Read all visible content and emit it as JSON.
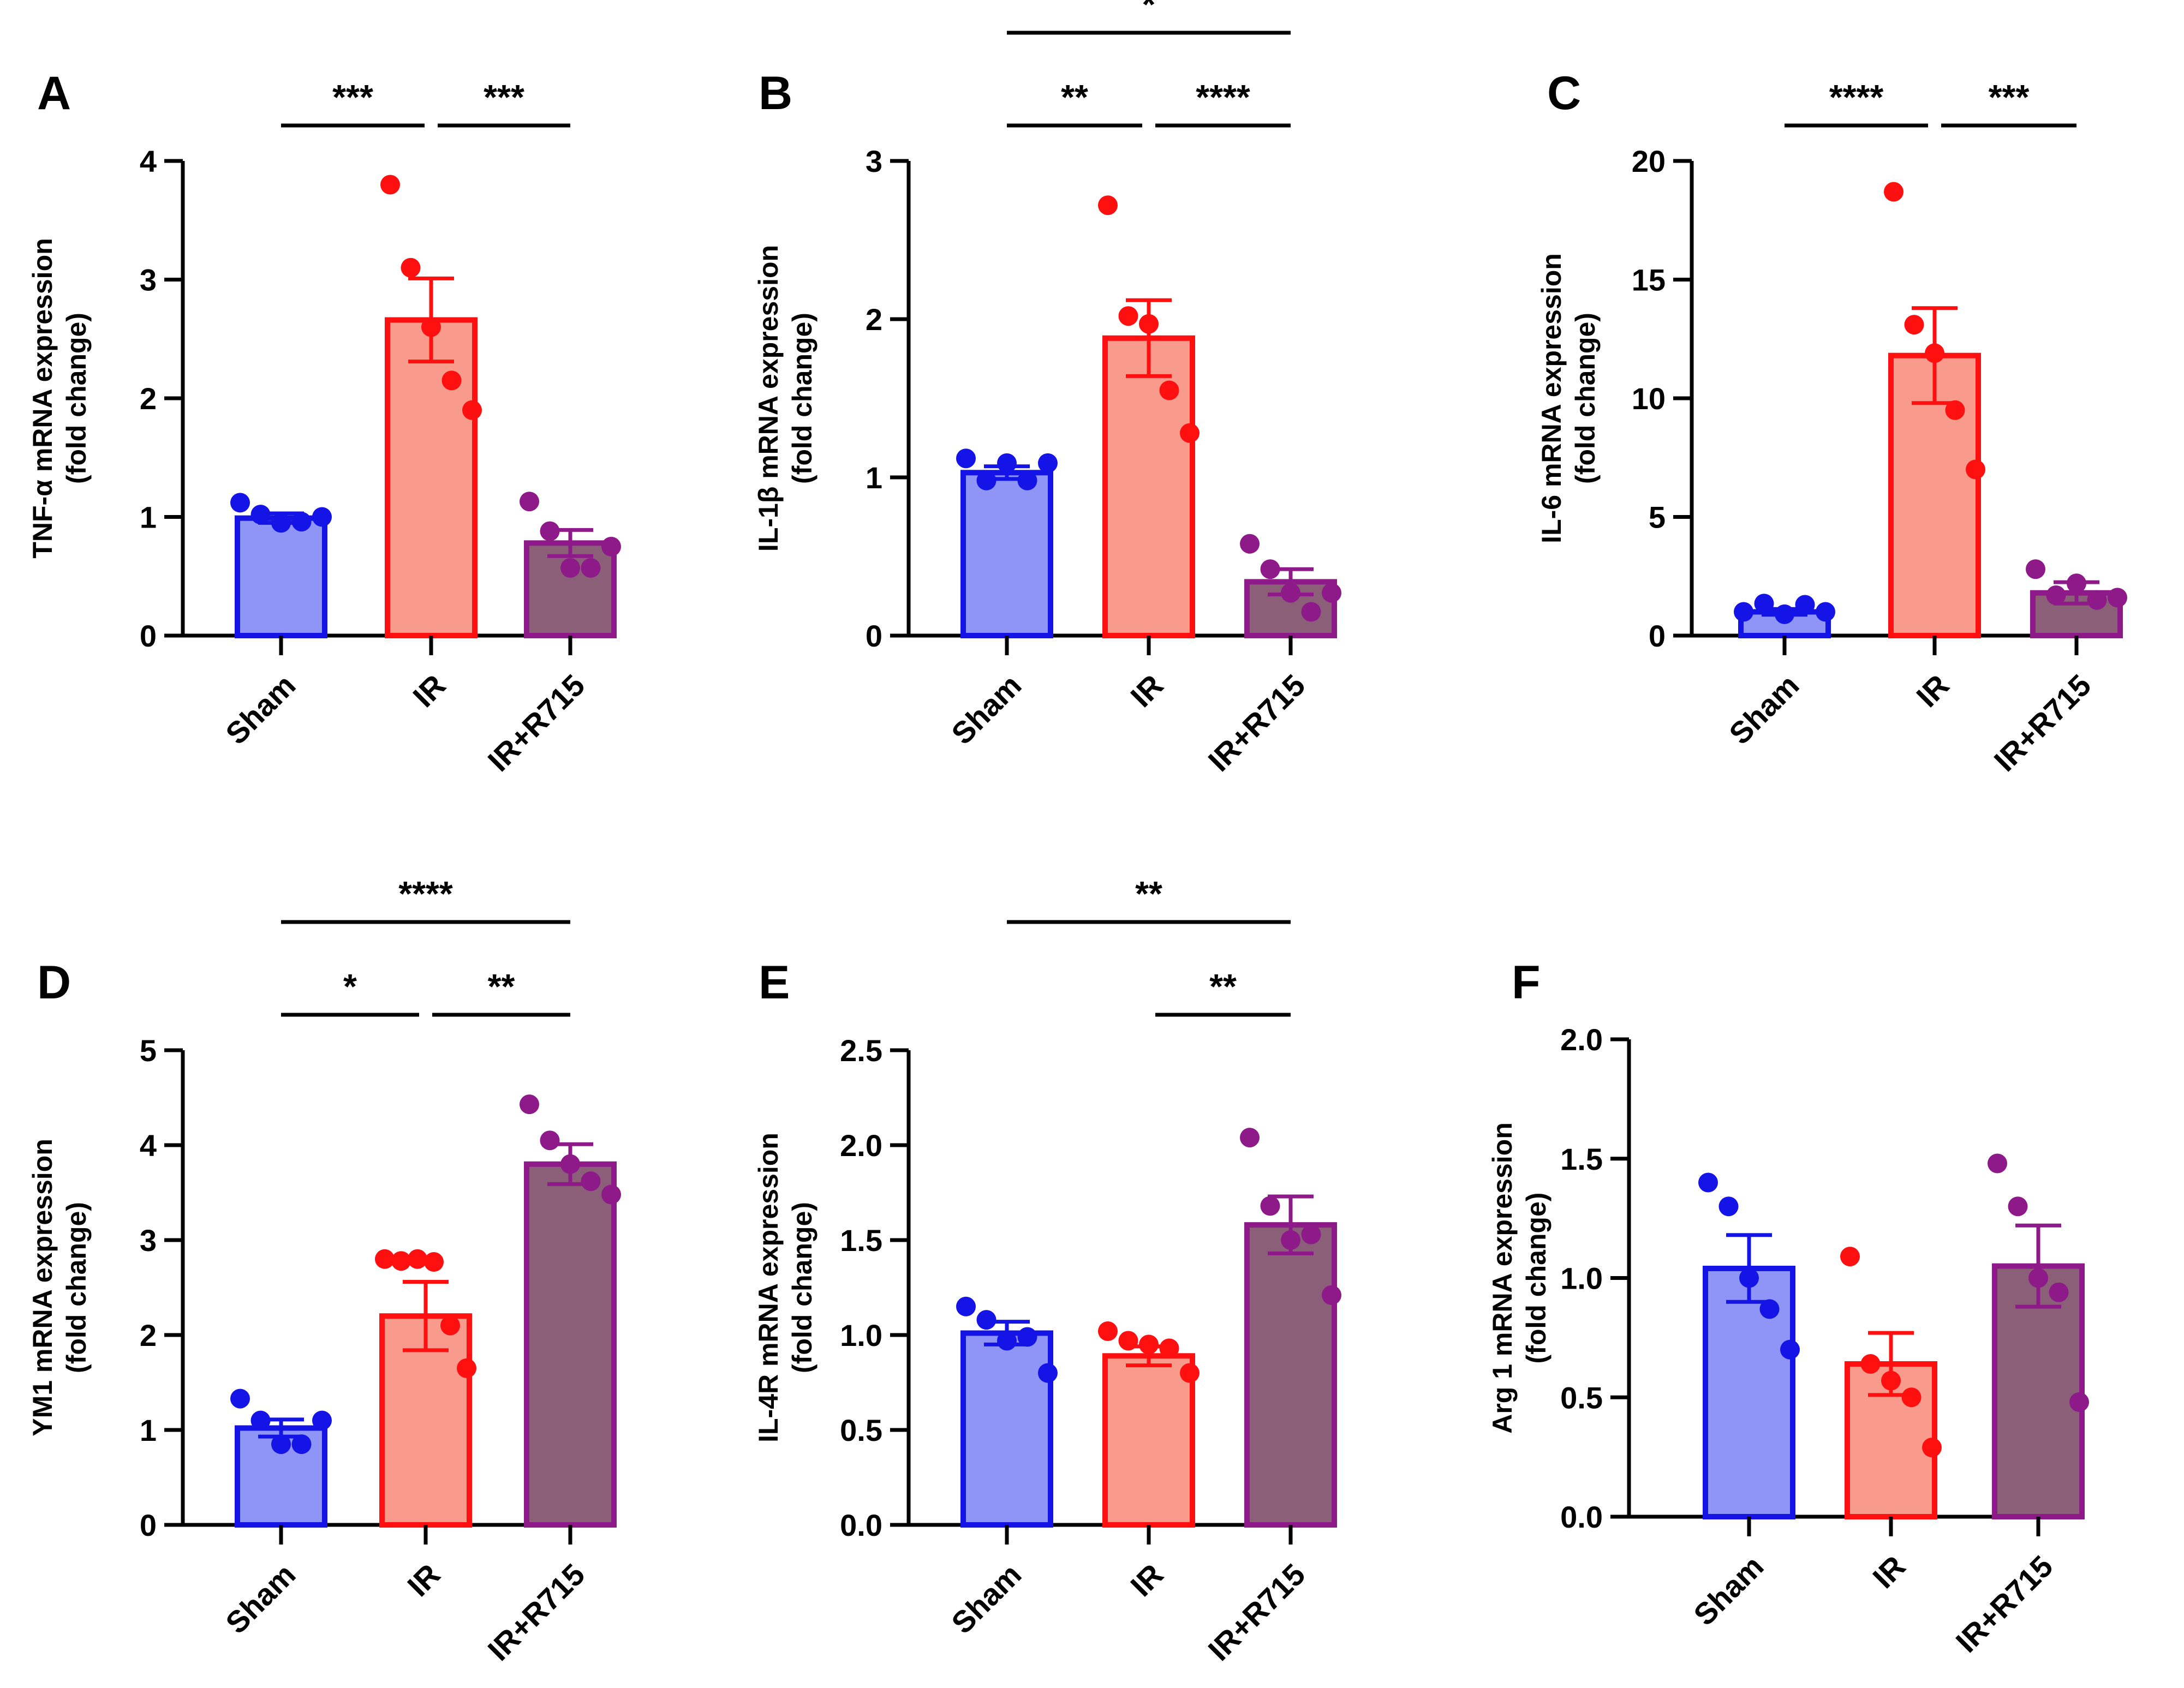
{
  "figure": {
    "categories": [
      "Sham",
      "IR",
      "IR+R715"
    ],
    "colors": {
      "Sham": {
        "fill": "#8f95f7",
        "stroke": "#1414e6",
        "dot": "#1414e6"
      },
      "IR": {
        "fill": "#f89a8c",
        "stroke": "#ff1010",
        "dot": "#ff1010"
      },
      "IR+R715": {
        "fill": "#8b5f78",
        "stroke": "#8e1a8a",
        "dot": "#8e1a8a"
      }
    }
  },
  "chart_data": [
    {
      "panel": "A",
      "type": "bar",
      "ylabel_line1": "TNF-α mRNA expression",
      "ylabel_line2": "(fold change)",
      "categories": [
        "Sham",
        "IR",
        "IR+R715"
      ],
      "ylim": [
        0,
        4
      ],
      "ticks": [
        0,
        1,
        2,
        3,
        4
      ],
      "tick_labels": [
        "0",
        "1",
        "2",
        "3",
        "4"
      ],
      "values": [
        0.99,
        2.66,
        0.78
      ],
      "sem": [
        0.04,
        0.35,
        0.11
      ],
      "points": [
        [
          1.12,
          1.02,
          0.95,
          0.96,
          1.0
        ],
        [
          3.8,
          3.1,
          2.6,
          2.15,
          1.9
        ],
        [
          1.13,
          0.88,
          0.57,
          0.57,
          0.75
        ]
      ],
      "significance": [
        {
          "from": 0,
          "to": 1,
          "label": "***"
        },
        {
          "from": 1,
          "to": 2,
          "label": "***"
        }
      ]
    },
    {
      "panel": "B",
      "type": "bar",
      "ylabel_line1": "IL-1β mRNA expression",
      "ylabel_line2": "(fold change)",
      "categories": [
        "Sham",
        "IR",
        "IR+R715"
      ],
      "ylim": [
        0,
        3
      ],
      "ticks": [
        0,
        1,
        2,
        3
      ],
      "tick_labels": [
        "0",
        "1",
        "2",
        "3"
      ],
      "values": [
        1.03,
        1.88,
        0.34
      ],
      "sem": [
        0.04,
        0.24,
        0.08
      ],
      "points": [
        [
          1.12,
          0.98,
          1.09,
          0.98,
          1.09
        ],
        [
          2.72,
          2.02,
          1.97,
          1.55,
          1.28
        ],
        [
          0.58,
          0.42,
          0.27,
          0.15,
          0.27
        ]
      ],
      "significance": [
        {
          "from": 0,
          "to": 1,
          "label": "**"
        },
        {
          "from": 1,
          "to": 2,
          "label": "****"
        },
        {
          "from": 0,
          "to": 2,
          "label": "*"
        }
      ]
    },
    {
      "panel": "C",
      "type": "bar",
      "ylabel_line1": "IL-6 mRNA expression",
      "ylabel_line2": "(fold change)",
      "categories": [
        "Sham",
        "IR",
        "IR+R715"
      ],
      "ylim": [
        0,
        20
      ],
      "ticks": [
        0,
        5,
        10,
        15,
        20
      ],
      "tick_labels": [
        "0",
        "5",
        "10",
        "15",
        "20"
      ],
      "values": [
        1.0,
        11.8,
        1.8
      ],
      "sem": [
        0.12,
        2.0,
        0.45
      ],
      "points": [
        [
          1.0,
          1.35,
          0.9,
          1.3,
          1.0
        ],
        [
          18.7,
          13.1,
          11.9,
          9.5,
          7.0
        ],
        [
          2.8,
          1.7,
          2.2,
          1.5,
          1.6
        ]
      ],
      "significance": [
        {
          "from": 0,
          "to": 1,
          "label": "****"
        },
        {
          "from": 1,
          "to": 2,
          "label": "***"
        }
      ]
    },
    {
      "panel": "D",
      "type": "bar",
      "ylabel_line1": "YM1 mRNA expression",
      "ylabel_line2": "(fold change)",
      "categories": [
        "Sham",
        "IR",
        "IR+R715"
      ],
      "ylim": [
        0,
        5
      ],
      "ticks": [
        0,
        1,
        2,
        3,
        4,
        5
      ],
      "tick_labels": [
        "0",
        "1",
        "2",
        "3",
        "4",
        "5"
      ],
      "values": [
        1.02,
        2.2,
        3.8
      ],
      "sem": [
        0.09,
        0.36,
        0.21
      ],
      "points": [
        [
          1.33,
          1.1,
          0.85,
          0.85,
          1.1
        ],
        [
          2.8,
          2.78,
          2.8,
          2.77,
          2.1,
          1.65
        ],
        [
          4.43,
          4.05,
          3.8,
          3.62,
          3.48
        ]
      ],
      "significance": [
        {
          "from": 0,
          "to": 1,
          "label": "*"
        },
        {
          "from": 1,
          "to": 2,
          "label": "**"
        },
        {
          "from": 0,
          "to": 2,
          "label": "****"
        }
      ]
    },
    {
      "panel": "E",
      "type": "bar",
      "ylabel_line1": "IL-4R mRNA expression",
      "ylabel_line2": "(fold change)",
      "categories": [
        "Sham",
        "IR",
        "IR+R715"
      ],
      "ylim": [
        0,
        2.5
      ],
      "ticks": [
        0,
        0.5,
        1.0,
        1.5,
        2.0,
        2.5
      ],
      "tick_labels": [
        "0.0",
        "0.5",
        "1.0",
        "1.5",
        "2.0",
        "2.5"
      ],
      "values": [
        1.01,
        0.89,
        1.58
      ],
      "sem": [
        0.06,
        0.05,
        0.15
      ],
      "points": [
        [
          1.15,
          1.08,
          0.97,
          0.99,
          0.8
        ],
        [
          1.02,
          0.97,
          0.95,
          0.93,
          0.8
        ],
        [
          2.04,
          1.68,
          1.5,
          1.53,
          1.21
        ]
      ],
      "significance": [
        {
          "from": 1,
          "to": 2,
          "label": "**"
        },
        {
          "from": 0,
          "to": 2,
          "label": "**"
        }
      ]
    },
    {
      "panel": "F",
      "type": "bar",
      "ylabel_line1": "Arg 1 mRNA expression",
      "ylabel_line2": "(fold change)",
      "categories": [
        "Sham",
        "IR",
        "IR+R715"
      ],
      "ylim": [
        0,
        2.0
      ],
      "ticks": [
        0,
        0.5,
        1.0,
        1.5,
        2.0
      ],
      "tick_labels": [
        "0.0",
        "0.5",
        "1.0",
        "1.5",
        "2.0"
      ],
      "values": [
        1.04,
        0.64,
        1.05
      ],
      "sem": [
        0.14,
        0.13,
        0.17
      ],
      "points": [
        [
          1.4,
          1.3,
          1.0,
          0.87,
          0.7
        ],
        [
          1.09,
          0.64,
          0.57,
          0.5,
          0.29
        ],
        [
          1.48,
          1.3,
          1.0,
          0.94,
          0.48
        ]
      ],
      "significance": []
    }
  ]
}
